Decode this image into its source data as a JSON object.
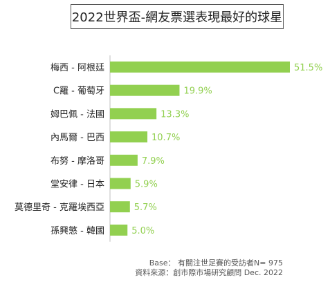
{
  "chart_data": {
    "type": "bar",
    "orientation": "horizontal",
    "title": "2022世界盃-網友票選表現最好的球星",
    "categories": [
      "梅西 - 阿根廷",
      "C羅 - 葡萄牙",
      "姆巴佩 - 法國",
      "內馬爾 - 巴西",
      "布努 - 摩洛哥",
      "堂安律 - 日本",
      "莫德里奇 - 克羅埃西亞",
      "孫興慜 - 韓國"
    ],
    "values": [
      51.5,
      19.9,
      13.3,
      10.7,
      7.9,
      5.9,
      5.7,
      5.0
    ],
    "value_labels": [
      "51.5%",
      "19.9%",
      "13.3%",
      "10.7%",
      "7.9%",
      "5.9%",
      "5.7%",
      "5.0%"
    ],
    "unit": "%",
    "xlim": [
      0,
      51.5
    ],
    "grid": false,
    "legend": "none",
    "bar_color": "#92d050"
  },
  "footnotes": {
    "base": "Base： 有關注世足賽的受訪者N= 975",
    "source": "資料來源：創市際市場研究顧問 Dec. 2022"
  }
}
